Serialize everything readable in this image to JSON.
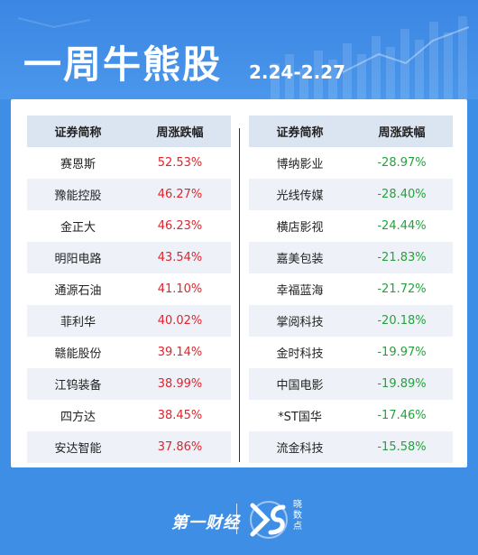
{
  "header": {
    "title": "一周牛熊股",
    "date": "2.24-2.27"
  },
  "tables": {
    "left": {
      "col1": "证券简称",
      "col2": "周涨跌幅",
      "rows": [
        {
          "name": "赛恩斯",
          "change": "52.53%"
        },
        {
          "name": "豫能控股",
          "change": "46.27%"
        },
        {
          "name": "金正大",
          "change": "46.23%"
        },
        {
          "name": "明阳电路",
          "change": "43.54%"
        },
        {
          "name": "通源石油",
          "change": "41.10%"
        },
        {
          "name": "菲利华",
          "change": "40.02%"
        },
        {
          "name": "赣能股份",
          "change": "39.14%"
        },
        {
          "name": "江钨装备",
          "change": "38.99%"
        },
        {
          "name": "四方达",
          "change": "38.45%"
        },
        {
          "name": "安达智能",
          "change": "37.86%"
        }
      ]
    },
    "right": {
      "col1": "证券简称",
      "col2": "周涨跌幅",
      "rows": [
        {
          "name": "博纳影业",
          "change": "-28.97%"
        },
        {
          "name": "光线传媒",
          "change": "-28.40%"
        },
        {
          "name": "横店影视",
          "change": "-24.44%"
        },
        {
          "name": "嘉美包装",
          "change": "-21.83%"
        },
        {
          "name": "幸福蓝海",
          "change": "-21.72%"
        },
        {
          "name": "掌阅科技",
          "change": "-20.18%"
        },
        {
          "name": "金时科技",
          "change": "-19.97%"
        },
        {
          "name": "中国电影",
          "change": "-19.89%"
        },
        {
          "name": "*ST国华",
          "change": "-17.46%"
        },
        {
          "name": "流金科技",
          "change": "-15.58%"
        }
      ]
    }
  },
  "footer": {
    "logo1": "第一财经",
    "logo2_text": "晓数点"
  },
  "colors": {
    "background": "#3f8ee6",
    "up": "#e0242c",
    "down": "#23a33b"
  }
}
